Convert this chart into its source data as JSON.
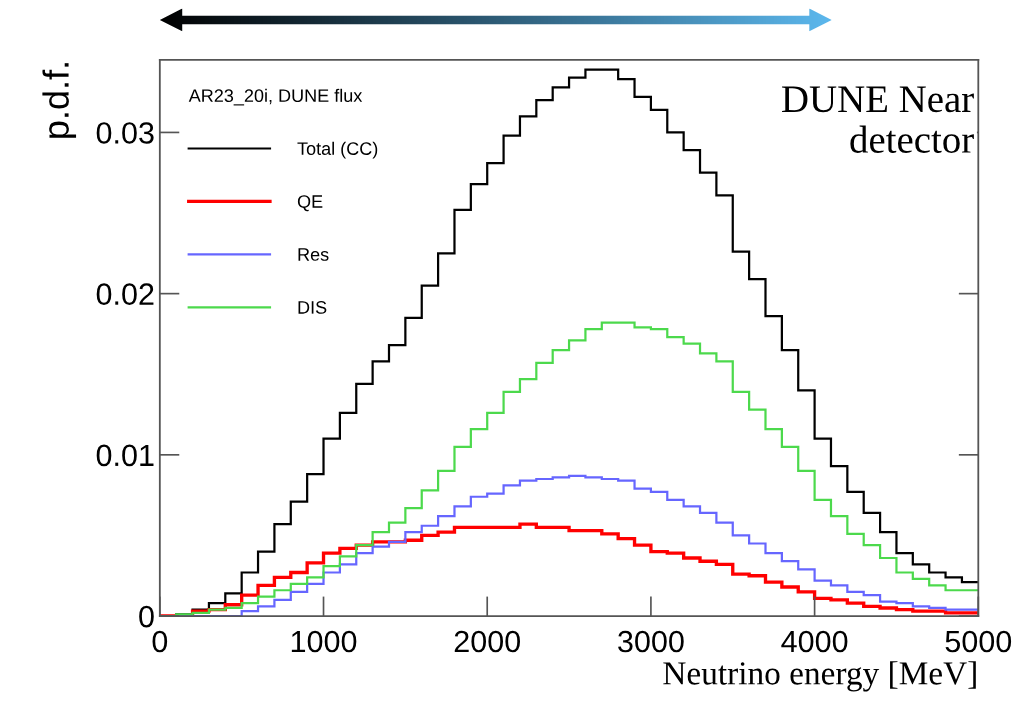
{
  "chart_data": {
    "type": "histogram",
    "xlabel": "Neutrino energy [MeV]",
    "ylabel": "p.d.f.",
    "legend_title": "AR23_20i, DUNE flux",
    "annotations": [
      "DUNE Near\ndetector"
    ],
    "bins": [
      0,
      100,
      200,
      300,
      400,
      500,
      600,
      700,
      800,
      900,
      1000,
      1100,
      1200,
      1300,
      1400,
      1500,
      1600,
      1700,
      1800,
      1900,
      2000,
      2100,
      2200,
      2300,
      2400,
      2500,
      2600,
      2700,
      2800,
      2900,
      3000,
      3100,
      3200,
      3300,
      3400,
      3500,
      3600,
      3700,
      3800,
      3900,
      4000,
      4100,
      4200,
      4300,
      4400,
      4500,
      4600,
      4700,
      4800,
      4900,
      5000
    ],
    "series": [
      {
        "name": "Total (CC)",
        "color": "#000000",
        "values": [
          0,
          0.0001,
          0.0004,
          0.0008,
          0.0014,
          0.0027,
          0.004,
          0.0057,
          0.0071,
          0.0088,
          0.011,
          0.0126,
          0.0144,
          0.0158,
          0.0168,
          0.0185,
          0.0205,
          0.0225,
          0.0252,
          0.0268,
          0.0281,
          0.0298,
          0.031,
          0.032,
          0.0328,
          0.0334,
          0.0339,
          0.0339,
          0.0333,
          0.0322,
          0.0314,
          0.03,
          0.0289,
          0.0275,
          0.0261,
          0.0226,
          0.0209,
          0.0186,
          0.0165,
          0.014,
          0.011,
          0.0093,
          0.0077,
          0.0064,
          0.0052,
          0.0039,
          0.0032,
          0.0027,
          0.0024,
          0.0021
        ]
      },
      {
        "name": "QE",
        "color": "#ff0000",
        "values": [
          0,
          0,
          0.0003,
          0.0004,
          0.0007,
          0.0013,
          0.0019,
          0.0024,
          0.0027,
          0.0033,
          0.0039,
          0.0042,
          0.0044,
          0.0046,
          0.0046,
          0.0047,
          0.005,
          0.0052,
          0.0055,
          0.0055,
          0.0055,
          0.0055,
          0.0057,
          0.0055,
          0.0055,
          0.0053,
          0.0053,
          0.0051,
          0.0048,
          0.0044,
          0.004,
          0.0039,
          0.0036,
          0.0034,
          0.0032,
          0.0026,
          0.0025,
          0.0021,
          0.0018,
          0.0015,
          0.0011,
          0.001,
          0.0008,
          0.0006,
          0.0005,
          0.0004,
          0.0003,
          0.0003,
          0.0002,
          0.0002
        ]
      },
      {
        "name": "Res",
        "color": "#6666ff",
        "values": [
          0,
          0,
          0,
          0,
          0,
          0.0003,
          0.0006,
          0.001,
          0.0015,
          0.002,
          0.0027,
          0.0032,
          0.0039,
          0.0043,
          0.0046,
          0.0052,
          0.0056,
          0.0062,
          0.0068,
          0.0074,
          0.0076,
          0.0081,
          0.0084,
          0.0085,
          0.0086,
          0.0087,
          0.0086,
          0.0085,
          0.0084,
          0.0079,
          0.0077,
          0.0072,
          0.0068,
          0.0064,
          0.0058,
          0.005,
          0.0045,
          0.0039,
          0.0034,
          0.0029,
          0.0022,
          0.0019,
          0.0015,
          0.0013,
          0.0009,
          0.0008,
          0.0006,
          0.0005,
          0.0004,
          0.0004
        ]
      },
      {
        "name": "DIS",
        "color": "#4cd94c",
        "values": [
          0,
          0.0001,
          0.0002,
          0.0004,
          0.0005,
          0.0008,
          0.0012,
          0.0016,
          0.002,
          0.0024,
          0.0031,
          0.0037,
          0.0044,
          0.0052,
          0.0058,
          0.0067,
          0.0078,
          0.009,
          0.0105,
          0.0116,
          0.0126,
          0.0139,
          0.0147,
          0.0157,
          0.0165,
          0.0171,
          0.0178,
          0.0182,
          0.0182,
          0.0179,
          0.0178,
          0.0173,
          0.0169,
          0.0163,
          0.0158,
          0.0139,
          0.0128,
          0.0116,
          0.0105,
          0.009,
          0.0072,
          0.0062,
          0.0051,
          0.0044,
          0.0036,
          0.0027,
          0.0023,
          0.0019,
          0.0016,
          0.0016
        ]
      }
    ],
    "xlim": [
      0,
      5000
    ],
    "ylim": [
      0,
      0.0345
    ],
    "xticks": [
      0,
      1000,
      2000,
      3000,
      4000,
      5000
    ],
    "yticks": [
      0,
      0.01,
      0.02,
      0.03
    ],
    "grid": false,
    "legend": "top left"
  }
}
